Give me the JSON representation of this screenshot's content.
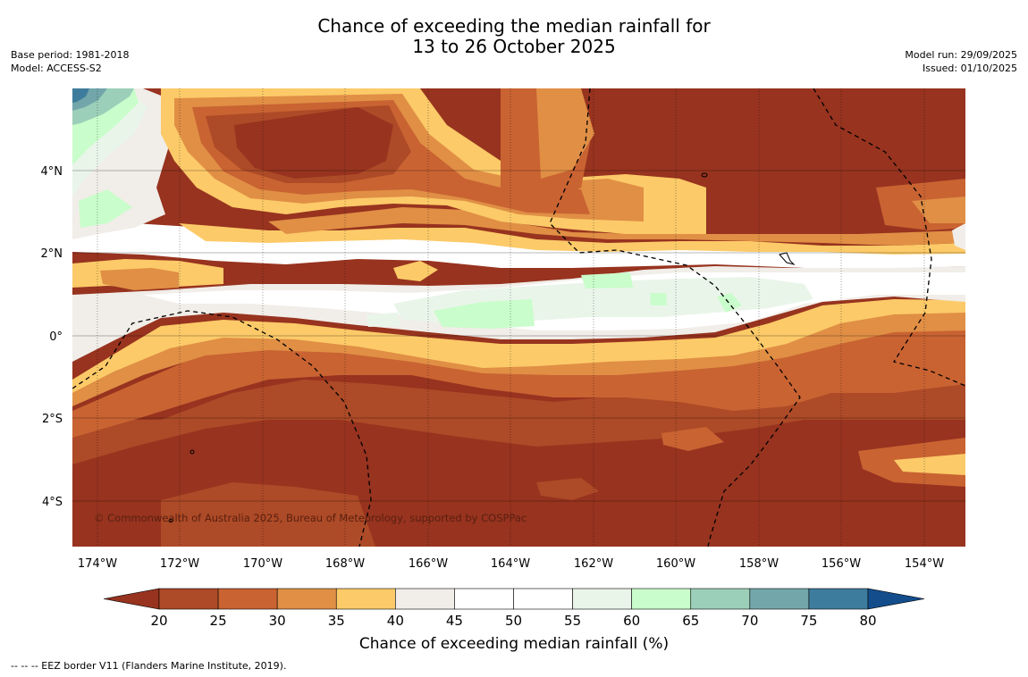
{
  "title": {
    "line1": "Chance of exceeding the median rainfall for",
    "line2": "13 to 26 October 2025"
  },
  "meta": {
    "base_period": "Base period: 1981-2018",
    "model": "Model: ACCESS-S2",
    "model_run": "Model run: 29/09/2025",
    "issued": "Issued: 01/10/2025"
  },
  "map": {
    "copyright": "© Commonwealth of Australia 2025, Bureau of Meteorology, supported by COSPPac",
    "lat_labels": [
      "4°N",
      "2°N",
      "0°",
      "2°S",
      "4°S"
    ],
    "lon_labels": [
      "174°W",
      "172°W",
      "170°W",
      "168°W",
      "166°W",
      "164°W",
      "162°W",
      "160°W",
      "158°W",
      "156°W",
      "154°W"
    ]
  },
  "colorbar": {
    "title": "Chance of exceeding median rainfall (%)",
    "ticks": [
      "20",
      "25",
      "30",
      "35",
      "40",
      "45",
      "50",
      "55",
      "60",
      "65",
      "70",
      "75",
      "80"
    ],
    "colors": [
      "#97331f",
      "#ad4a27",
      "#c96332",
      "#e08f45",
      "#fcca68",
      "#f1ede8",
      "#ffffff",
      "#ffffff",
      "#eaf5ea",
      "#c9fdcb",
      "#9ccfb9",
      "#72a6aa",
      "#3e7c9d",
      "#134d8c"
    ]
  },
  "footnote": "--  --  -- EEZ border V11 (Flanders Marine Institute, 2019)."
}
